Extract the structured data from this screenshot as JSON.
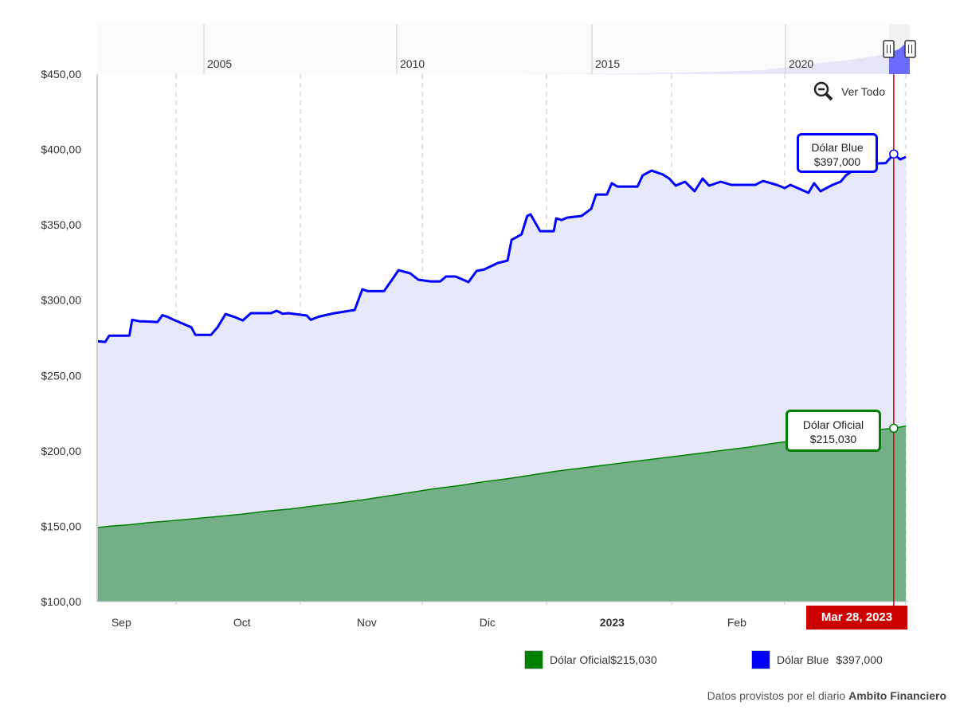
{
  "chart_data": {
    "type": "area",
    "ylim": [
      100,
      450
    ],
    "xlim": [
      0,
      201
    ],
    "x_unit": "days",
    "y_ticks": [
      "$100,00",
      "$150,00",
      "$200,00",
      "$250,00",
      "$300,00",
      "$350,00",
      "$400,00",
      "$450,00"
    ],
    "y_tick_values": [
      100,
      150,
      200,
      250,
      300,
      350,
      400,
      450
    ],
    "x_ticks": [
      {
        "label": "Sep",
        "x": 6,
        "bold": false
      },
      {
        "label": "Oct",
        "x": 36,
        "bold": false
      },
      {
        "label": "Nov",
        "x": 67,
        "bold": false
      },
      {
        "label": "Dic",
        "x": 97,
        "bold": false
      },
      {
        "label": "2023",
        "x": 128,
        "bold": true
      },
      {
        "label": "Feb",
        "x": 159,
        "bold": false
      }
    ],
    "gridlines_x": [
      19.6,
      50.5,
      80.8,
      111.7,
      142.8,
      170.9,
      201
    ],
    "series": [
      {
        "name": "Dólar Oficial",
        "color": "#008000",
        "fill": "#73b088",
        "points": [
          [
            0,
            149.1
          ],
          [
            3,
            150
          ],
          [
            8,
            151
          ],
          [
            13,
            152.5
          ],
          [
            18,
            153.5
          ],
          [
            24,
            155
          ],
          [
            30,
            156.5
          ],
          [
            36,
            158
          ],
          [
            42,
            160
          ],
          [
            48,
            161.5
          ],
          [
            54,
            163.5
          ],
          [
            60,
            165.5
          ],
          [
            66,
            167.5
          ],
          [
            72,
            170
          ],
          [
            78,
            172.5
          ],
          [
            84,
            175
          ],
          [
            90,
            177
          ],
          [
            96,
            179.5
          ],
          [
            102,
            181.5
          ],
          [
            108,
            184
          ],
          [
            114,
            186.5
          ],
          [
            120,
            188.5
          ],
          [
            126,
            190.5
          ],
          [
            132,
            192.5
          ],
          [
            138,
            194.5
          ],
          [
            144,
            196.5
          ],
          [
            150,
            198.5
          ],
          [
            156,
            200.5
          ],
          [
            162,
            202.5
          ],
          [
            168,
            205
          ],
          [
            174,
            207
          ],
          [
            180,
            209.5
          ],
          [
            186,
            211.5
          ],
          [
            192,
            213.5
          ],
          [
            198,
            215.03
          ],
          [
            201,
            216.5
          ]
        ]
      },
      {
        "name": "Dólar Blue",
        "color": "#0000ff",
        "fill": "#e8e8fb",
        "points": [
          [
            0,
            272.8
          ],
          [
            2,
            272.3
          ],
          [
            3,
            276.5
          ],
          [
            4.5,
            276.5
          ],
          [
            8,
            276.5
          ],
          [
            8.7,
            287
          ],
          [
            10.5,
            286
          ],
          [
            11.5,
            286
          ],
          [
            15,
            285.5
          ],
          [
            16.2,
            290
          ],
          [
            17.4,
            289
          ],
          [
            19,
            287
          ],
          [
            23.4,
            282
          ],
          [
            24.4,
            277
          ],
          [
            28.3,
            277
          ],
          [
            29.9,
            282
          ],
          [
            31.9,
            290.8
          ],
          [
            34.3,
            288.7
          ],
          [
            36.2,
            286.6
          ],
          [
            38.2,
            291.4
          ],
          [
            43.2,
            291.4
          ],
          [
            44.6,
            293
          ],
          [
            46.1,
            291
          ],
          [
            47.5,
            291.4
          ],
          [
            52.1,
            289.8
          ],
          [
            53.1,
            287
          ],
          [
            55,
            289
          ],
          [
            59,
            291.4
          ],
          [
            64,
            293.5
          ],
          [
            65.9,
            307.2
          ],
          [
            67.3,
            306
          ],
          [
            71.3,
            306
          ],
          [
            73.3,
            313.6
          ],
          [
            74.9,
            319.9
          ],
          [
            77.8,
            317.8
          ],
          [
            79.8,
            313.6
          ],
          [
            82.8,
            312.5
          ],
          [
            85.3,
            312.5
          ],
          [
            86.7,
            315.7
          ],
          [
            89.1,
            315.7
          ],
          [
            92.3,
            312
          ],
          [
            94.3,
            319.4
          ],
          [
            96.2,
            320.4
          ],
          [
            99.6,
            324.7
          ],
          [
            102,
            326.3
          ],
          [
            103,
            340
          ],
          [
            105.5,
            343.7
          ],
          [
            106.9,
            355.9
          ],
          [
            107.7,
            357
          ],
          [
            110.1,
            345.8
          ],
          [
            113.5,
            345.8
          ],
          [
            114.1,
            354.3
          ],
          [
            115.4,
            353.2
          ],
          [
            116.8,
            354.8
          ],
          [
            120.4,
            355.9
          ],
          [
            122.8,
            360.6
          ],
          [
            124,
            370.1
          ],
          [
            126.7,
            370.1
          ],
          [
            127.9,
            377.6
          ],
          [
            129.3,
            375.4
          ],
          [
            130.9,
            375.4
          ],
          [
            134.3,
            375.4
          ],
          [
            135.6,
            382.8
          ],
          [
            137.8,
            386
          ],
          [
            140.6,
            383.4
          ],
          [
            142.2,
            380.7
          ],
          [
            143.8,
            376
          ],
          [
            146.1,
            378.6
          ],
          [
            148.5,
            372.3
          ],
          [
            150.5,
            380.7
          ],
          [
            152.1,
            376
          ],
          [
            155,
            378.6
          ],
          [
            157.6,
            376.5
          ],
          [
            163.6,
            376.5
          ],
          [
            165.5,
            379.1
          ],
          [
            168.9,
            376.5
          ],
          [
            170.9,
            374.4
          ],
          [
            172.3,
            376.5
          ],
          [
            176.8,
            371.2
          ],
          [
            178.2,
            377.6
          ],
          [
            179.8,
            372.3
          ],
          [
            182.8,
            376.5
          ],
          [
            184.8,
            378.6
          ],
          [
            186.1,
            382.8
          ],
          [
            190.1,
            390.2
          ],
          [
            193.7,
            390.7
          ],
          [
            196,
            391
          ],
          [
            198,
            397
          ],
          [
            199.6,
            393.4
          ],
          [
            201,
            395
          ]
        ]
      }
    ],
    "cursor": {
      "x": 198,
      "date_label": "Mar 28, 2023"
    },
    "tooltips": [
      {
        "series": "Dólar Blue",
        "title": "Dólar Blue",
        "value": "$397,000"
      },
      {
        "series": "Dólar Oficial",
        "title": "Dólar Oficial",
        "value": "$215,030"
      }
    ],
    "navigator": {
      "year_labels": [
        "2005",
        "2010",
        "2015",
        "2020"
      ]
    },
    "legend": [
      {
        "name": "Dólar Oficial",
        "value": "$215,030",
        "color": "#008000"
      },
      {
        "name": "Dólar Blue",
        "value": "$397,000",
        "color": "#0000ff"
      }
    ],
    "legend_placement": "bottom-right"
  },
  "controls": {
    "reset_zoom_label": "Ver Todo"
  },
  "footer": {
    "prefix": "Datos provistos por el diario ",
    "source": "Ambito Financiero"
  }
}
